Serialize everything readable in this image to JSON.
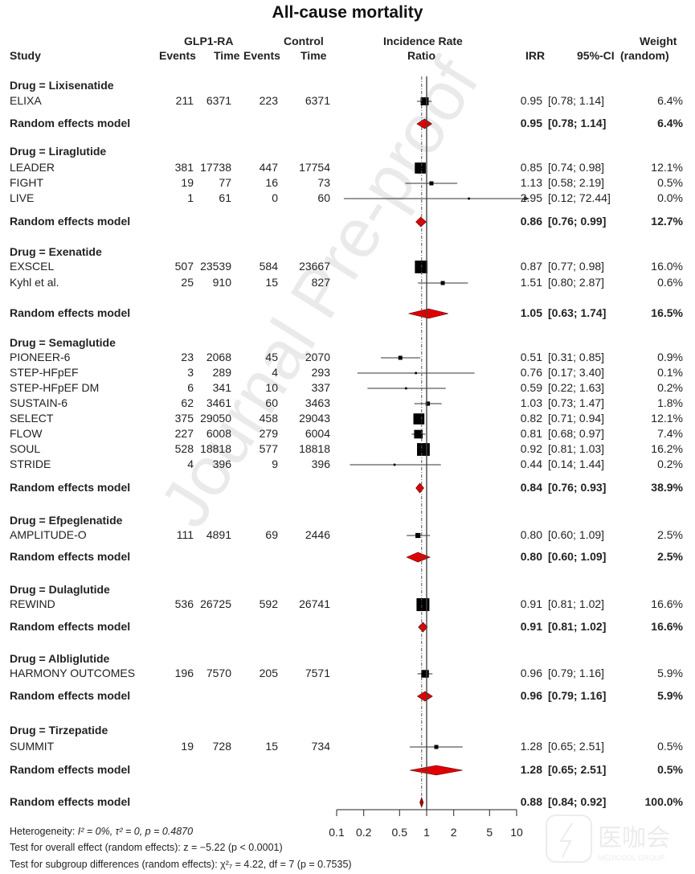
{
  "chart_data": {
    "type": "forest",
    "title": "All-cause mortality",
    "headers": {
      "study": "Study",
      "treat_group": "GLP1-RA",
      "control_group": "Control",
      "events": "Events",
      "time": "Time",
      "plot_line1": "Incidence Rate",
      "plot_line2": "Ratio",
      "irr": "IRR",
      "ci": "95%-CI",
      "weight_line1": "Weight",
      "weight_line2": "(random)"
    },
    "xscale": "log",
    "xlim": [
      0.1,
      10
    ],
    "xticks": [
      "0.1",
      "0.2",
      "0.5",
      "1",
      "2",
      "5",
      "10"
    ],
    "xtick_values": [
      0.1,
      0.2,
      0.5,
      1,
      2,
      5,
      10
    ],
    "reference_line": 1,
    "overall_dashed_line": 0.88,
    "groups": [
      {
        "label": "Drug = Lixisenatide",
        "studies": [
          {
            "name": "ELIXA",
            "e1": "211",
            "t1": "6371",
            "e2": "223",
            "t2": "6371",
            "irr": 0.95,
            "lo": 0.78,
            "hi": 1.14,
            "irr_text": "0.95",
            "ci_text": "[0.78;  1.14]",
            "weight": "6.4%"
          }
        ],
        "pooled": {
          "label": "Random effects model",
          "irr": 0.95,
          "lo": 0.78,
          "hi": 1.14,
          "irr_text": "0.95",
          "ci_text": "[0.78;  1.14]",
          "weight": "6.4%"
        }
      },
      {
        "label": "Drug = Liraglutide",
        "studies": [
          {
            "name": "LEADER",
            "e1": "381",
            "t1": "17738",
            "e2": "447",
            "t2": "17754",
            "irr": 0.85,
            "lo": 0.74,
            "hi": 0.98,
            "irr_text": "0.85",
            "ci_text": "[0.74;  0.98]",
            "weight": "12.1%"
          },
          {
            "name": "FIGHT",
            "e1": "19",
            "t1": "77",
            "e2": "16",
            "t2": "73",
            "irr": 1.13,
            "lo": 0.58,
            "hi": 2.19,
            "irr_text": "1.13",
            "ci_text": "[0.58;  2.19]",
            "weight": "0.5%"
          },
          {
            "name": "LIVE",
            "e1": "1",
            "t1": "61",
            "e2": "0",
            "t2": "60",
            "irr": 2.95,
            "lo": 0.12,
            "hi": 72.44,
            "irr_text": "2.95",
            "ci_text": "[0.12; 72.44]",
            "weight": "0.0%"
          }
        ],
        "pooled": {
          "label": "Random effects model",
          "irr": 0.86,
          "lo": 0.76,
          "hi": 0.99,
          "irr_text": "0.86",
          "ci_text": "[0.76;  0.99]",
          "weight": "12.7%"
        }
      },
      {
        "label": "Drug = Exenatide",
        "studies": [
          {
            "name": "EXSCEL",
            "e1": "507",
            "t1": "23539",
            "e2": "584",
            "t2": "23667",
            "irr": 0.87,
            "lo": 0.77,
            "hi": 0.98,
            "irr_text": "0.87",
            "ci_text": "[0.77;  0.98]",
            "weight": "16.0%"
          },
          {
            "name": "Kyhl et al.",
            "e1": "25",
            "t1": "910",
            "e2": "15",
            "t2": "827",
            "irr": 1.51,
            "lo": 0.8,
            "hi": 2.87,
            "irr_text": "1.51",
            "ci_text": "[0.80;  2.87]",
            "weight": "0.6%"
          }
        ],
        "pooled": {
          "label": "Random effects model",
          "irr": 1.05,
          "lo": 0.63,
          "hi": 1.74,
          "irr_text": "1.05",
          "ci_text": "[0.63;  1.74]",
          "weight": "16.5%"
        }
      },
      {
        "label": "Drug = Semaglutide",
        "studies": [
          {
            "name": "PIONEER-6",
            "e1": "23",
            "t1": "2068",
            "e2": "45",
            "t2": "2070",
            "irr": 0.51,
            "lo": 0.31,
            "hi": 0.85,
            "irr_text": "0.51",
            "ci_text": "[0.31;  0.85]",
            "weight": "0.9%"
          },
          {
            "name": "STEP-HFpEF",
            "e1": "3",
            "t1": "289",
            "e2": "4",
            "t2": "293",
            "irr": 0.76,
            "lo": 0.17,
            "hi": 3.4,
            "irr_text": "0.76",
            "ci_text": "[0.17;  3.40]",
            "weight": "0.1%"
          },
          {
            "name": "STEP-HFpEF DM",
            "e1": "6",
            "t1": "341",
            "e2": "10",
            "t2": "337",
            "irr": 0.59,
            "lo": 0.22,
            "hi": 1.63,
            "irr_text": "0.59",
            "ci_text": "[0.22;  1.63]",
            "weight": "0.2%"
          },
          {
            "name": "SUSTAIN-6",
            "e1": "62",
            "t1": "3461",
            "e2": "60",
            "t2": "3463",
            "irr": 1.03,
            "lo": 0.73,
            "hi": 1.47,
            "irr_text": "1.03",
            "ci_text": "[0.73;  1.47]",
            "weight": "1.8%"
          },
          {
            "name": "SELECT",
            "e1": "375",
            "t1": "29050",
            "e2": "458",
            "t2": "29043",
            "irr": 0.82,
            "lo": 0.71,
            "hi": 0.94,
            "irr_text": "0.82",
            "ci_text": "[0.71;  0.94]",
            "weight": "12.1%"
          },
          {
            "name": "FLOW",
            "e1": "227",
            "t1": "6008",
            "e2": "279",
            "t2": "6004",
            "irr": 0.81,
            "lo": 0.68,
            "hi": 0.97,
            "irr_text": "0.81",
            "ci_text": "[0.68;  0.97]",
            "weight": "7.4%"
          },
          {
            "name": "SOUL",
            "e1": "528",
            "t1": "18818",
            "e2": "577",
            "t2": "18818",
            "irr": 0.92,
            "lo": 0.81,
            "hi": 1.03,
            "irr_text": "0.92",
            "ci_text": "[0.81;  1.03]",
            "weight": "16.2%"
          },
          {
            "name": "STRIDE",
            "e1": "4",
            "t1": "396",
            "e2": "9",
            "t2": "396",
            "irr": 0.44,
            "lo": 0.14,
            "hi": 1.44,
            "irr_text": "0.44",
            "ci_text": "[0.14;  1.44]",
            "weight": "0.2%"
          }
        ],
        "pooled": {
          "label": "Random effects model",
          "irr": 0.84,
          "lo": 0.76,
          "hi": 0.93,
          "irr_text": "0.84",
          "ci_text": "[0.76;  0.93]",
          "weight": "38.9%"
        }
      },
      {
        "label": "Drug = Efpeglenatide",
        "studies": [
          {
            "name": "AMPLITUDE-O",
            "e1": "111",
            "t1": "4891",
            "e2": "69",
            "t2": "2446",
            "irr": 0.8,
            "lo": 0.6,
            "hi": 1.09,
            "irr_text": "0.80",
            "ci_text": "[0.60;  1.09]",
            "weight": "2.5%"
          }
        ],
        "pooled": {
          "label": "Random effects model",
          "irr": 0.8,
          "lo": 0.6,
          "hi": 1.09,
          "irr_text": "0.80",
          "ci_text": "[0.60;  1.09]",
          "weight": "2.5%"
        }
      },
      {
        "label": "Drug = Dulaglutide",
        "studies": [
          {
            "name": "REWIND",
            "e1": "536",
            "t1": "26725",
            "e2": "592",
            "t2": "26741",
            "irr": 0.91,
            "lo": 0.81,
            "hi": 1.02,
            "irr_text": "0.91",
            "ci_text": "[0.81;  1.02]",
            "weight": "16.6%"
          }
        ],
        "pooled": {
          "label": "Random effects model",
          "irr": 0.91,
          "lo": 0.81,
          "hi": 1.02,
          "irr_text": "0.91",
          "ci_text": "[0.81;  1.02]",
          "weight": "16.6%"
        }
      },
      {
        "label": "Drug = Albliglutide",
        "studies": [
          {
            "name": "HARMONY OUTCOMES",
            "e1": "196",
            "t1": "7570",
            "e2": "205",
            "t2": "7571",
            "irr": 0.96,
            "lo": 0.79,
            "hi": 1.16,
            "irr_text": "0.96",
            "ci_text": "[0.79;  1.16]",
            "weight": "5.9%"
          }
        ],
        "pooled": {
          "label": "Random effects model",
          "irr": 0.96,
          "lo": 0.79,
          "hi": 1.16,
          "irr_text": "0.96",
          "ci_text": "[0.79;  1.16]",
          "weight": "5.9%"
        }
      },
      {
        "label": "Drug = Tirzepatide",
        "studies": [
          {
            "name": "SUMMIT",
            "e1": "19",
            "t1": "728",
            "e2": "15",
            "t2": "734",
            "irr": 1.28,
            "lo": 0.65,
            "hi": 2.51,
            "irr_text": "1.28",
            "ci_text": "[0.65;  2.51]",
            "weight": "0.5%"
          }
        ],
        "pooled": {
          "label": "Random effects model",
          "irr": 1.28,
          "lo": 0.65,
          "hi": 2.51,
          "irr_text": "1.28",
          "ci_text": "[0.65;  2.51]",
          "weight": "0.5%"
        }
      }
    ],
    "overall": {
      "label": "Random effects model",
      "irr": 0.88,
      "lo": 0.84,
      "hi": 0.92,
      "irr_text": "0.88",
      "ci_text": "[0.84;  0.92]",
      "weight": "100.0%"
    },
    "footnotes": {
      "heterogeneity_prefix": "Heterogeneity: ",
      "heterogeneity_stats": "I² = 0%, τ² = 0, p = 0.4870",
      "overall_effect": "Test for overall effect (random effects): z = −5.22 (p < 0.0001)",
      "subgroup": "Test for subgroup differences (random effects): χ²₇ = 4.22, df = 7 (p = 0.7535)"
    },
    "colors": {
      "diamond": "#e00000",
      "square": "#000000",
      "line": "#333333"
    }
  },
  "watermark": {
    "text": "Journal Pre-proof",
    "logo_text": "医咖会",
    "logo_sub": "MEDICOOL GROUP"
  }
}
